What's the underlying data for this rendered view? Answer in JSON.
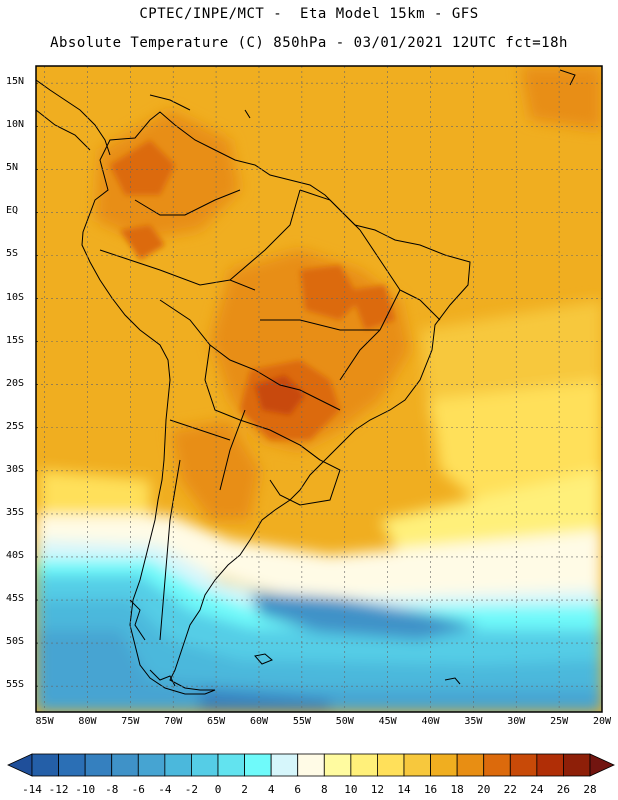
{
  "header": {
    "line1": "CPTEC/INPE/MCT -  Eta Model 15km - GFS",
    "line2": "Absolute Temperature (C) 850hPa - 03/01/2021 12UTC fct=18h"
  },
  "map": {
    "lat_labels": [
      "15N",
      "10N",
      "5N",
      "EQ",
      "5S",
      "10S",
      "15S",
      "20S",
      "25S",
      "30S",
      "35S",
      "40S",
      "45S",
      "50S",
      "55S"
    ],
    "lon_labels": [
      "85W",
      "80W",
      "75W",
      "70W",
      "65W",
      "60W",
      "55W",
      "50W",
      "45W",
      "40W",
      "35W",
      "30W",
      "25W",
      "20W"
    ],
    "lat_range": [
      17,
      -58
    ],
    "lon_range": [
      -86,
      -20
    ]
  },
  "colorbar": {
    "ticks": [
      "-14",
      "-12",
      "-10",
      "-8",
      "-6",
      "-4",
      "-2",
      "0",
      "2",
      "4",
      "6",
      "8",
      "10",
      "12",
      "14",
      "16",
      "18",
      "20",
      "22",
      "24",
      "26",
      "28"
    ],
    "colors": [
      "#1f4f9a",
      "#245fa8",
      "#2b6fb5",
      "#3580bf",
      "#3f92c8",
      "#46a4d2",
      "#4bb8dc",
      "#55cde6",
      "#62e3ef",
      "#6ffafa",
      "#d6f6fb",
      "#fffbe6",
      "#fffba0",
      "#fff07a",
      "#ffe05a",
      "#f7c83d",
      "#f0ae20",
      "#e88e13",
      "#dc6a0c",
      "#c84a08",
      "#b02e06",
      "#8e1f08",
      "#721510"
    ]
  },
  "colors": {
    "cool_ocean": "#3fb9df",
    "warm_land": "#e88e13",
    "hot_core": "#dc6a0c"
  }
}
